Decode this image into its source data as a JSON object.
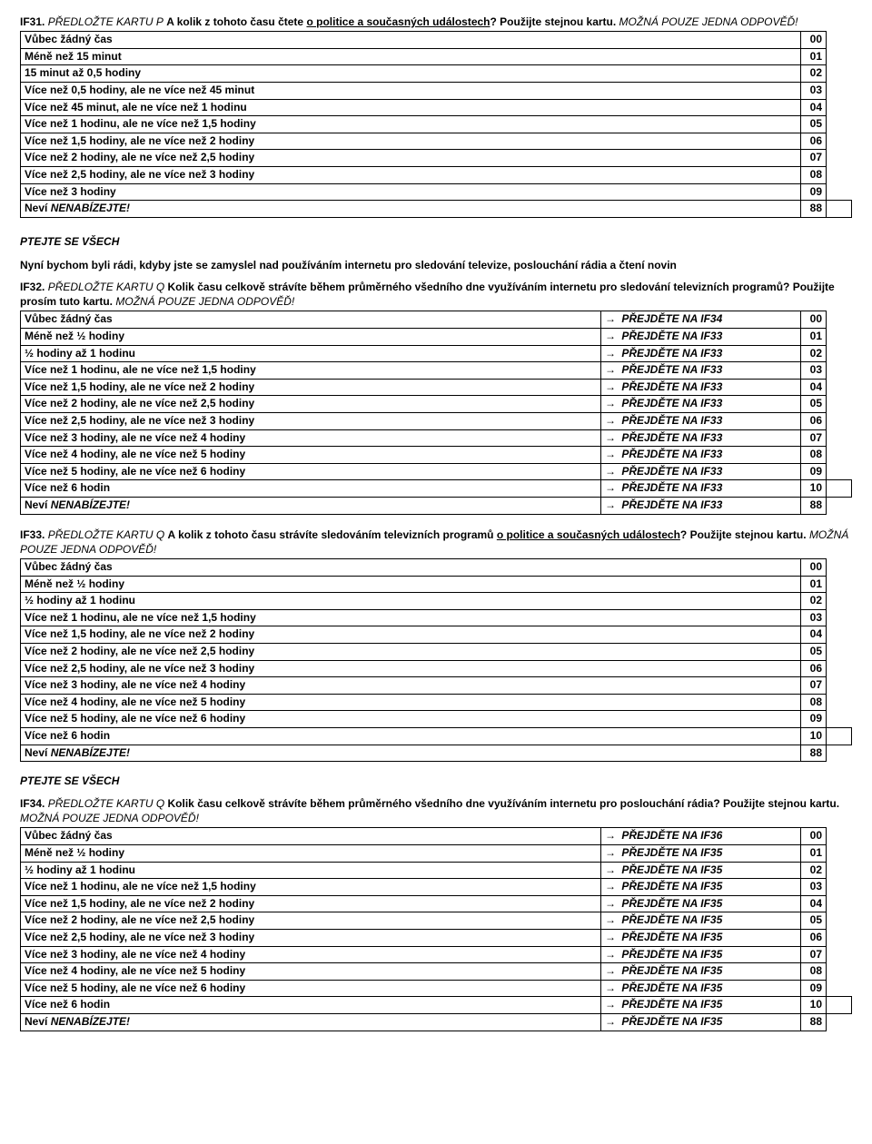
{
  "q31": {
    "code": "IF31.",
    "card": "PŘEDLOŽTE KARTU P",
    "text": "A kolik z tohoto času čtete",
    "uline": "o politice a současných událostech",
    "after": "? Použijte stejnou kartu.",
    "constraint": "MOŽNÁ POUZE JEDNA ODPOVĚĎ!",
    "rows": [
      {
        "label": "Vůbec žádný čas",
        "code": "00"
      },
      {
        "label": "Méně než 15 minut",
        "code": "01"
      },
      {
        "label": "15 minut až 0,5 hodiny",
        "code": "02"
      },
      {
        "label": "Více než 0,5 hodiny, ale ne více než 45 minut",
        "code": "03"
      },
      {
        "label": "Více než 45 minut, ale ne více než 1 hodinu",
        "code": "04"
      },
      {
        "label": "Více než 1 hodinu, ale ne více než 1,5 hodiny",
        "code": "05"
      },
      {
        "label": "Více než 1,5 hodiny, ale ne více než 2 hodiny",
        "code": "06"
      },
      {
        "label": "Více než 2 hodiny, ale ne více než 2,5 hodiny",
        "code": "07"
      },
      {
        "label": "Více než 2,5 hodiny, ale ne více než 3 hodiny",
        "code": "08"
      },
      {
        "label": "Více než 3 hodiny",
        "code": "09"
      },
      {
        "label": "Neví",
        "tail": "NENABÍZEJTE!",
        "code": "88",
        "extra": true
      }
    ]
  },
  "midnote": {
    "ask": "PTEJTE SE VŠECH",
    "text": "Nyní bychom byli rádi, kdyby jste se zamyslel nad používáním internetu pro sledování televize, poslouchání rádia a čtení novin"
  },
  "q32": {
    "code": "IF32.",
    "card": "PŘEDLOŽTE KARTU Q",
    "text": "Kolik času celkově strávíte během průměrného všedního dne využíváním internetu pro sledování televizních programů? Použijte prosím tuto kartu.",
    "constraint": "MOŽNÁ POUZE JEDNA ODPOVĚĎ!",
    "rows": [
      {
        "label": "Vůbec žádný čas",
        "goto": "PŘEJDĚTE NA IF34",
        "code": "00"
      },
      {
        "label": "Méně než ½ hodiny",
        "goto": "PŘEJDĚTE NA IF33",
        "code": "01"
      },
      {
        "label": "½ hodiny až 1 hodinu",
        "goto": "PŘEJDĚTE NA IF33",
        "code": "02"
      },
      {
        "label": "Více než 1 hodinu, ale ne více než 1,5 hodiny",
        "goto": "PŘEJDĚTE NA IF33",
        "code": "03"
      },
      {
        "label": "Více než 1,5 hodiny, ale ne více než 2 hodiny",
        "goto": "PŘEJDĚTE NA IF33",
        "code": "04"
      },
      {
        "label": "Více než 2 hodiny, ale ne více než 2,5 hodiny",
        "goto": "PŘEJDĚTE NA IF33",
        "code": "05"
      },
      {
        "label": "Více než 2,5 hodiny, ale ne více než 3 hodiny",
        "goto": "PŘEJDĚTE NA IF33",
        "code": "06"
      },
      {
        "label": "Více než 3 hodiny, ale ne více než 4 hodiny",
        "goto": "PŘEJDĚTE NA IF33",
        "code": "07"
      },
      {
        "label": "Více než 4 hodiny, ale ne více než 5 hodiny",
        "goto": "PŘEJDĚTE NA IF33",
        "code": "08"
      },
      {
        "label": "Více než 5 hodiny, ale ne více než 6 hodiny",
        "goto": "PŘEJDĚTE NA IF33",
        "code": "09"
      },
      {
        "label": "Více než 6 hodin",
        "goto": "PŘEJDĚTE NA IF33",
        "code": "10",
        "extra": true
      },
      {
        "label": "Neví",
        "tail": "NENABÍZEJTE!",
        "goto": "PŘEJDĚTE NA IF33",
        "code": "88"
      }
    ]
  },
  "q33": {
    "code": "IF33.",
    "card": "PŘEDLOŽTE KARTU Q",
    "text": "A kolik z tohoto času strávíte sledováním televizních programů",
    "uline": "o politice a současných událostech",
    "after": "? Použijte stejnou kartu.",
    "constraint": "MOŽNÁ POUZE JEDNA ODPOVĚĎ!",
    "rows": [
      {
        "label": "Vůbec žádný čas",
        "code": "00"
      },
      {
        "label": "Méně než ½ hodiny",
        "code": "01"
      },
      {
        "label": "½ hodiny až 1 hodinu",
        "code": "02"
      },
      {
        "label": "Více než 1 hodinu, ale ne více než 1,5 hodiny",
        "code": "03"
      },
      {
        "label": "Více než 1,5 hodiny, ale ne více než 2 hodiny",
        "code": "04"
      },
      {
        "label": "Více než 2 hodiny, ale ne více než 2,5 hodiny",
        "code": "05"
      },
      {
        "label": "Více než 2,5 hodiny, ale ne více než 3 hodiny",
        "code": "06"
      },
      {
        "label": "Více než 3 hodiny, ale ne více než 4 hodiny",
        "code": "07"
      },
      {
        "label": "Více než 4 hodiny, ale ne více než 5 hodiny",
        "code": "08"
      },
      {
        "label": "Více než 5 hodiny, ale ne více než 6 hodiny",
        "code": "09"
      },
      {
        "label": "Více než 6 hodin",
        "code": "10",
        "extra": true
      },
      {
        "label": "Neví",
        "tail": "NENABÍZEJTE!",
        "code": "88"
      }
    ]
  },
  "ask2": "PTEJTE SE VŠECH",
  "q34": {
    "code": "IF34.",
    "card": "PŘEDLOŽTE KARTU Q",
    "text": "Kolik času celkově strávíte během průměrného všedního dne využíváním internetu pro poslouchání rádia? Použijte stejnou kartu.",
    "constraint": "MOŽNÁ POUZE JEDNA ODPOVĚĎ!",
    "rows": [
      {
        "label": "Vůbec žádný čas",
        "goto": "PŘEJDĚTE NA IF36",
        "code": "00"
      },
      {
        "label": "Méně než ½ hodiny",
        "goto": "PŘEJDĚTE NA IF35",
        "code": "01"
      },
      {
        "label": "½ hodiny až 1 hodinu",
        "goto": "PŘEJDĚTE NA IF35",
        "code": "02"
      },
      {
        "label": "Více než 1 hodinu, ale ne více než 1,5 hodiny",
        "goto": "PŘEJDĚTE NA IF35",
        "code": "03"
      },
      {
        "label": "Více než 1,5 hodiny, ale ne více než 2 hodiny",
        "goto": "PŘEJDĚTE NA IF35",
        "code": "04"
      },
      {
        "label": "Více než 2 hodiny, ale ne více než 2,5 hodiny",
        "goto": "PŘEJDĚTE NA IF35",
        "code": "05"
      },
      {
        "label": "Více než 2,5 hodiny, ale ne více než 3 hodiny",
        "goto": "PŘEJDĚTE NA IF35",
        "code": "06"
      },
      {
        "label": "Více než 3 hodiny, ale ne více než 4 hodiny",
        "goto": "PŘEJDĚTE NA IF35",
        "code": "07"
      },
      {
        "label": "Více než 4 hodiny, ale ne více než 5 hodiny",
        "goto": "PŘEJDĚTE NA IF35",
        "code": "08"
      },
      {
        "label": "Více než 5 hodiny, ale ne více než 6 hodiny",
        "goto": "PŘEJDĚTE NA IF35",
        "code": "09"
      },
      {
        "label": "Více než 6 hodin",
        "goto": "PŘEJDĚTE NA IF35",
        "code": "10",
        "extra": true
      },
      {
        "label": "Neví",
        "tail": "NENABÍZEJTE!",
        "goto": "PŘEJDĚTE NA IF35",
        "code": "88"
      }
    ]
  }
}
